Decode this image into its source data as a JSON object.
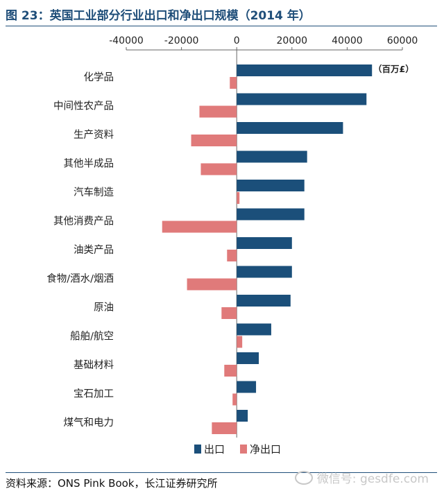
{
  "title": "图 23：英国工业部分行业出口和净出口规模（2014 年）",
  "source": "资料来源：ONS Pink Book，长江证券研究所",
  "watermark": "微信号: gesdfe.com",
  "colors": {
    "export": "#1b4f7a",
    "net_export": "#e07a7a",
    "title": "#1f4e79"
  },
  "chart_data": {
    "type": "bar",
    "orientation": "horizontal",
    "unit": "（百万£）",
    "xlim": [
      -40000,
      60000
    ],
    "xticks": [
      -40000,
      -20000,
      0,
      20000,
      40000,
      60000
    ],
    "xtick_labels": [
      "-40000",
      "-20000",
      "0",
      "20000",
      "40000",
      "60000"
    ],
    "categories": [
      "化学品",
      "中间性农产品",
      "生产资料",
      "其他半成品",
      "汽车制造",
      "其他消费产品",
      "油类产品",
      "食物/酒水/烟酒",
      "原油",
      "船舶/航空",
      "基础材料",
      "宝石加工",
      "煤气和电力"
    ],
    "series": [
      {
        "name": "出口",
        "values": [
          49000,
          47000,
          38500,
          25500,
          24500,
          24500,
          20000,
          20000,
          19500,
          12500,
          8000,
          7000,
          4000
        ]
      },
      {
        "name": "净出口",
        "values": [
          -2500,
          -13500,
          -16500,
          -13000,
          1000,
          -27000,
          -3500,
          -18000,
          -5500,
          2000,
          -4500,
          -1500,
          -9000
        ]
      }
    ],
    "legend_position": "bottom"
  }
}
